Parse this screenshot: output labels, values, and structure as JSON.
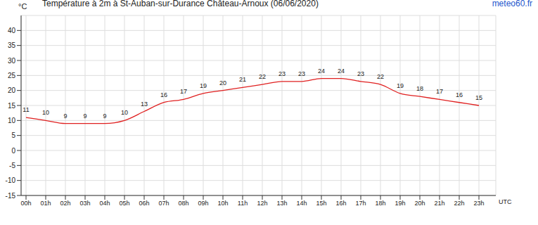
{
  "chart_data": {
    "type": "line",
    "title": "Température à 2m à St-Auban-sur-Durance Château-Arnoux (06/06/2020)",
    "source": "meteo60.fr",
    "y_label": "°C",
    "x_label": "UTC",
    "categories": [
      "00h",
      "01h",
      "02h",
      "03h",
      "04h",
      "05h",
      "06h",
      "07h",
      "08h",
      "09h",
      "10h",
      "11h",
      "12h",
      "13h",
      "14h",
      "15h",
      "16h",
      "17h",
      "18h",
      "19h",
      "20h",
      "21h",
      "22h",
      "23h"
    ],
    "values": [
      11,
      10,
      9,
      9,
      9,
      10,
      13,
      16,
      17,
      19,
      20,
      21,
      22,
      23,
      23,
      24,
      24,
      23,
      22,
      19,
      18,
      17,
      16,
      15
    ],
    "color": "#e02020",
    "ylim": [
      -15,
      45
    ],
    "yticks": [
      -15,
      -10,
      -5,
      0,
      5,
      10,
      15,
      20,
      25,
      30,
      35,
      40
    ],
    "grid": true,
    "data_labels": true
  }
}
